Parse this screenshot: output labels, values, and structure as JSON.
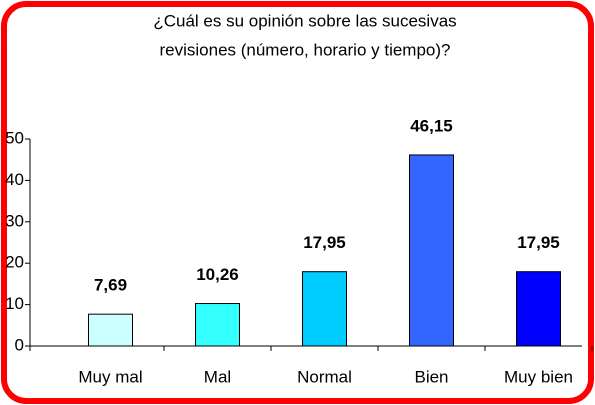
{
  "chart_data": {
    "type": "bar",
    "title": [
      "¿Cuál es su opinión sobre las sucesivas",
      "revisiones (número, horario y tiempo)?"
    ],
    "categories": [
      "Muy mal",
      "Mal",
      "Normal",
      "Bien",
      "Muy bien"
    ],
    "values": [
      7.69,
      10.26,
      17.95,
      46.15,
      17.95
    ],
    "value_labels": [
      "7,69",
      "10,26",
      "17,95",
      "46,15",
      "17,95"
    ],
    "colors": [
      "#ccffff",
      "#33ffff",
      "#00ccff",
      "#3366ff",
      "#0000ff"
    ],
    "ylim": [
      0,
      50
    ],
    "yticks": [
      0,
      10,
      20,
      30,
      40,
      50
    ],
    "grid": false
  }
}
